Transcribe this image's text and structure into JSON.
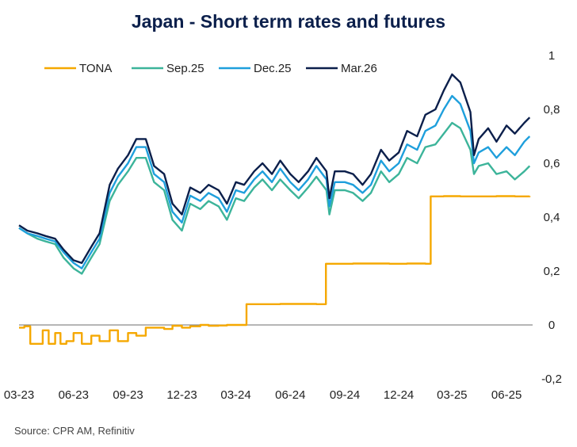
{
  "chart_data": {
    "type": "line",
    "title": "Japan - Short term rates and futures",
    "source": "Source: CPR AM, Refinitiv",
    "xlabel": "",
    "ylabel": "",
    "ylim": [
      -0.2,
      1
    ],
    "y_ticks": [
      "1",
      "0,8",
      "0,6",
      "0,4",
      "0,2",
      "0",
      "-0,2"
    ],
    "y_tick_values": [
      1,
      0.8,
      0.6,
      0.4,
      0.2,
      0,
      -0.2
    ],
    "x_domain": [
      "2023-03-01",
      "2025-07-15"
    ],
    "x_ticks": [
      "03-23",
      "06-23",
      "09-23",
      "12-23",
      "03-24",
      "06-24",
      "09-24",
      "12-24",
      "03-25",
      "06-25"
    ],
    "x_tick_dates": [
      "2023-03-01",
      "2023-06-01",
      "2023-09-01",
      "2023-12-01",
      "2024-03-01",
      "2024-06-01",
      "2024-09-01",
      "2024-12-01",
      "2025-03-01",
      "2025-06-01"
    ],
    "grid": false,
    "zero_line": true,
    "legend_position": "top-left",
    "series": [
      {
        "name": "TONA",
        "color": "#f5a800",
        "step": true,
        "x": [
          "2023-03-01",
          "2023-03-10",
          "2023-03-20",
          "2023-04-01",
          "2023-04-10",
          "2023-04-20",
          "2023-05-01",
          "2023-05-10",
          "2023-05-20",
          "2023-06-01",
          "2023-06-15",
          "2023-07-01",
          "2023-07-15",
          "2023-08-01",
          "2023-08-15",
          "2023-09-01",
          "2023-09-15",
          "2023-10-01",
          "2023-10-15",
          "2023-11-01",
          "2023-11-15",
          "2023-12-01",
          "2023-12-15",
          "2024-01-01",
          "2024-01-15",
          "2024-02-01",
          "2024-02-15",
          "2024-03-19",
          "2024-04-15",
          "2024-05-15",
          "2024-06-15",
          "2024-07-15",
          "2024-07-31",
          "2024-08-15",
          "2024-09-15",
          "2024-10-15",
          "2024-11-15",
          "2024-12-15",
          "2025-01-15",
          "2025-01-24",
          "2025-02-15",
          "2025-03-15",
          "2025-04-15",
          "2025-05-15",
          "2025-06-15",
          "2025-07-10"
        ],
        "values": [
          -0.01,
          -0.005,
          -0.07,
          -0.07,
          -0.02,
          -0.07,
          -0.03,
          -0.07,
          -0.06,
          -0.03,
          -0.07,
          -0.04,
          -0.06,
          -0.02,
          -0.06,
          -0.03,
          -0.04,
          -0.01,
          -0.01,
          -0.015,
          -0.003,
          -0.01,
          -0.005,
          0.0,
          -0.003,
          -0.002,
          0.0,
          0.077,
          0.077,
          0.078,
          0.078,
          0.077,
          0.227,
          0.227,
          0.228,
          0.228,
          0.227,
          0.228,
          0.227,
          0.477,
          0.478,
          0.477,
          0.477,
          0.478,
          0.477,
          0.478
        ]
      },
      {
        "name": "Sep.25",
        "color": "#3cb49a",
        "step": false,
        "x": [
          "2023-03-01",
          "2023-03-15",
          "2023-04-01",
          "2023-04-15",
          "2023-05-01",
          "2023-05-15",
          "2023-06-01",
          "2023-06-15",
          "2023-07-01",
          "2023-07-15",
          "2023-08-01",
          "2023-08-15",
          "2023-09-01",
          "2023-09-15",
          "2023-10-01",
          "2023-10-15",
          "2023-11-01",
          "2023-11-15",
          "2023-12-01",
          "2023-12-15",
          "2024-01-01",
          "2024-01-15",
          "2024-02-01",
          "2024-02-15",
          "2024-03-01",
          "2024-03-15",
          "2024-04-01",
          "2024-04-15",
          "2024-05-01",
          "2024-05-15",
          "2024-06-01",
          "2024-06-15",
          "2024-07-01",
          "2024-07-15",
          "2024-08-01",
          "2024-08-06",
          "2024-08-15",
          "2024-09-01",
          "2024-09-15",
          "2024-10-01",
          "2024-10-15",
          "2024-11-01",
          "2024-11-15",
          "2024-12-01",
          "2024-12-15",
          "2025-01-01",
          "2025-01-15",
          "2025-02-01",
          "2025-02-15",
          "2025-03-01",
          "2025-03-15",
          "2025-04-01",
          "2025-04-07",
          "2025-04-15",
          "2025-05-01",
          "2025-05-15",
          "2025-06-01",
          "2025-06-15",
          "2025-07-01",
          "2025-07-10"
        ],
        "values": [
          0.36,
          0.34,
          0.32,
          0.31,
          0.3,
          0.25,
          0.21,
          0.19,
          0.25,
          0.3,
          0.46,
          0.52,
          0.57,
          0.62,
          0.62,
          0.53,
          0.5,
          0.39,
          0.35,
          0.45,
          0.43,
          0.46,
          0.44,
          0.39,
          0.47,
          0.46,
          0.51,
          0.54,
          0.5,
          0.54,
          0.5,
          0.47,
          0.51,
          0.55,
          0.5,
          0.41,
          0.5,
          0.5,
          0.49,
          0.46,
          0.49,
          0.57,
          0.53,
          0.56,
          0.62,
          0.6,
          0.66,
          0.67,
          0.71,
          0.75,
          0.73,
          0.65,
          0.56,
          0.59,
          0.6,
          0.56,
          0.57,
          0.54,
          0.57,
          0.59
        ]
      },
      {
        "name": "Dec.25",
        "color": "#1e9fdc",
        "step": false,
        "x": [
          "2023-03-01",
          "2023-03-15",
          "2023-04-01",
          "2023-04-15",
          "2023-05-01",
          "2023-05-15",
          "2023-06-01",
          "2023-06-15",
          "2023-07-01",
          "2023-07-15",
          "2023-08-01",
          "2023-08-15",
          "2023-09-01",
          "2023-09-15",
          "2023-10-01",
          "2023-10-15",
          "2023-11-01",
          "2023-11-15",
          "2023-12-01",
          "2023-12-15",
          "2024-01-01",
          "2024-01-15",
          "2024-02-01",
          "2024-02-15",
          "2024-03-01",
          "2024-03-15",
          "2024-04-01",
          "2024-04-15",
          "2024-05-01",
          "2024-05-15",
          "2024-06-01",
          "2024-06-15",
          "2024-07-01",
          "2024-07-15",
          "2024-08-01",
          "2024-08-06",
          "2024-08-15",
          "2024-09-01",
          "2024-09-15",
          "2024-10-01",
          "2024-10-15",
          "2024-11-01",
          "2024-11-15",
          "2024-12-01",
          "2024-12-15",
          "2025-01-01",
          "2025-01-15",
          "2025-02-01",
          "2025-02-15",
          "2025-03-01",
          "2025-03-15",
          "2025-04-01",
          "2025-04-07",
          "2025-04-15",
          "2025-05-01",
          "2025-05-15",
          "2025-06-01",
          "2025-06-15",
          "2025-07-01",
          "2025-07-10"
        ],
        "values": [
          0.36,
          0.34,
          0.33,
          0.32,
          0.31,
          0.27,
          0.23,
          0.21,
          0.27,
          0.32,
          0.49,
          0.55,
          0.6,
          0.66,
          0.66,
          0.56,
          0.53,
          0.42,
          0.38,
          0.48,
          0.46,
          0.49,
          0.47,
          0.42,
          0.5,
          0.49,
          0.54,
          0.57,
          0.53,
          0.58,
          0.53,
          0.5,
          0.54,
          0.59,
          0.54,
          0.44,
          0.53,
          0.53,
          0.52,
          0.49,
          0.52,
          0.61,
          0.57,
          0.6,
          0.67,
          0.65,
          0.72,
          0.74,
          0.8,
          0.85,
          0.82,
          0.72,
          0.6,
          0.64,
          0.66,
          0.62,
          0.66,
          0.63,
          0.68,
          0.7
        ]
      },
      {
        "name": "Mar.26",
        "color": "#0b1f4b",
        "step": false,
        "x": [
          "2023-03-01",
          "2023-03-15",
          "2023-04-01",
          "2023-04-15",
          "2023-05-01",
          "2023-05-15",
          "2023-06-01",
          "2023-06-15",
          "2023-07-01",
          "2023-07-15",
          "2023-08-01",
          "2023-08-15",
          "2023-09-01",
          "2023-09-15",
          "2023-10-01",
          "2023-10-15",
          "2023-11-01",
          "2023-11-15",
          "2023-12-01",
          "2023-12-15",
          "2024-01-01",
          "2024-01-15",
          "2024-02-01",
          "2024-02-15",
          "2024-03-01",
          "2024-03-15",
          "2024-04-01",
          "2024-04-15",
          "2024-05-01",
          "2024-05-15",
          "2024-06-01",
          "2024-06-15",
          "2024-07-01",
          "2024-07-15",
          "2024-08-01",
          "2024-08-06",
          "2024-08-15",
          "2024-09-01",
          "2024-09-15",
          "2024-10-01",
          "2024-10-15",
          "2024-11-01",
          "2024-11-15",
          "2024-12-01",
          "2024-12-15",
          "2025-01-01",
          "2025-01-15",
          "2025-02-01",
          "2025-02-15",
          "2025-03-01",
          "2025-03-15",
          "2025-04-01",
          "2025-04-07",
          "2025-04-15",
          "2025-05-01",
          "2025-05-15",
          "2025-06-01",
          "2025-06-15",
          "2025-07-01",
          "2025-07-10"
        ],
        "values": [
          0.37,
          0.35,
          0.34,
          0.33,
          0.32,
          0.28,
          0.24,
          0.23,
          0.29,
          0.34,
          0.52,
          0.58,
          0.63,
          0.69,
          0.69,
          0.59,
          0.56,
          0.45,
          0.41,
          0.51,
          0.49,
          0.52,
          0.5,
          0.45,
          0.53,
          0.52,
          0.57,
          0.6,
          0.56,
          0.61,
          0.56,
          0.53,
          0.57,
          0.62,
          0.57,
          0.47,
          0.57,
          0.57,
          0.56,
          0.52,
          0.56,
          0.65,
          0.61,
          0.64,
          0.72,
          0.7,
          0.78,
          0.8,
          0.87,
          0.93,
          0.9,
          0.79,
          0.63,
          0.69,
          0.73,
          0.68,
          0.74,
          0.71,
          0.75,
          0.77
        ]
      }
    ]
  }
}
